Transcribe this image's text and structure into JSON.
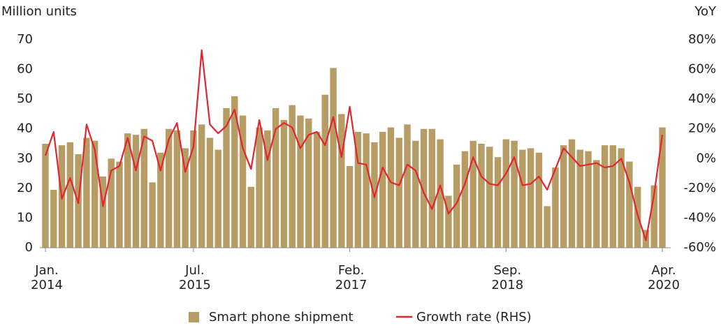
{
  "chart_data": {
    "type": "bar_line",
    "y_label": "Million units",
    "y2_label": "YoY",
    "categories": [
      "Jan.\n2014",
      null,
      null,
      null,
      null,
      null,
      null,
      null,
      null,
      null,
      null,
      null,
      null,
      null,
      null,
      null,
      null,
      null,
      "Jul.\n2015",
      null,
      null,
      null,
      null,
      null,
      null,
      null,
      null,
      null,
      null,
      null,
      null,
      null,
      null,
      null,
      null,
      null,
      null,
      "Feb.\n2017",
      null,
      null,
      null,
      null,
      null,
      null,
      null,
      null,
      null,
      null,
      null,
      null,
      null,
      null,
      null,
      null,
      null,
      null,
      "Sep.\n2018",
      null,
      null,
      null,
      null,
      null,
      null,
      null,
      null,
      null,
      null,
      null,
      null,
      null,
      null,
      null,
      null,
      null,
      null,
      "Apr.\n2020"
    ],
    "series": [
      {
        "name": "Smart phone shipment",
        "color": "#b89c65",
        "values": [
          35,
          19.5,
          34.5,
          35.5,
          31.5,
          37,
          36,
          24,
          30,
          29,
          38.5,
          38,
          40,
          22,
          32,
          40,
          39.5,
          33.5,
          39.5,
          41.5,
          37,
          33,
          47,
          51,
          44.5,
          20.5,
          40.5,
          39.5,
          47,
          43,
          48,
          44.5,
          43.5,
          39,
          51.5,
          60.5,
          45,
          27.5,
          39,
          38.5,
          35.5,
          39,
          40.5,
          37,
          41.5,
          36,
          40,
          40,
          36.5,
          17.5,
          28,
          32.5,
          36,
          35,
          34,
          30.5,
          36.5,
          36,
          33,
          33.5,
          32,
          14,
          27,
          34.5,
          36.5,
          33,
          32.5,
          29.5,
          34.5,
          34.5,
          33.5,
          29,
          20.5,
          6,
          21,
          40.5
        ]
      },
      {
        "name": "Growth rate (RHS)",
        "color": "#e3262d",
        "axis": "y2",
        "values": [
          2,
          18,
          -27,
          -13,
          -30,
          23,
          6,
          -32,
          -8,
          -5,
          14,
          -8,
          15,
          12,
          -8,
          13,
          24,
          -9,
          8,
          73,
          23,
          17,
          22,
          33,
          7,
          -7,
          26,
          -1,
          20,
          24,
          21,
          7,
          16,
          18,
          9,
          28,
          1,
          35,
          -3,
          -4,
          -26,
          -6,
          -16,
          -18,
          -4,
          -8,
          -23,
          -34,
          -18,
          -37,
          -30,
          -17,
          1,
          -12,
          -17,
          -18,
          -10,
          1,
          -18,
          -17,
          -12,
          -21,
          -7,
          7,
          1,
          -5,
          -4,
          -3,
          -6,
          -5,
          0,
          -16,
          -38,
          -55,
          -24,
          16
        ]
      }
    ],
    "ylim": [
      0,
      70
    ],
    "yticks": [
      0,
      10,
      20,
      30,
      40,
      50,
      60,
      70
    ],
    "y2lim": [
      -60,
      80
    ],
    "y2ticks": [
      {
        "value": -60,
        "label": "-60%"
      },
      {
        "value": -40,
        "label": "-40%"
      },
      {
        "value": -20,
        "label": "-20%"
      },
      {
        "value": 0,
        "label": "0%"
      },
      {
        "value": 20,
        "label": "20%"
      },
      {
        "value": 40,
        "label": "40%"
      },
      {
        "value": 60,
        "label": "60%"
      },
      {
        "value": 80,
        "label": "80%"
      }
    ],
    "legend": "bottom"
  }
}
